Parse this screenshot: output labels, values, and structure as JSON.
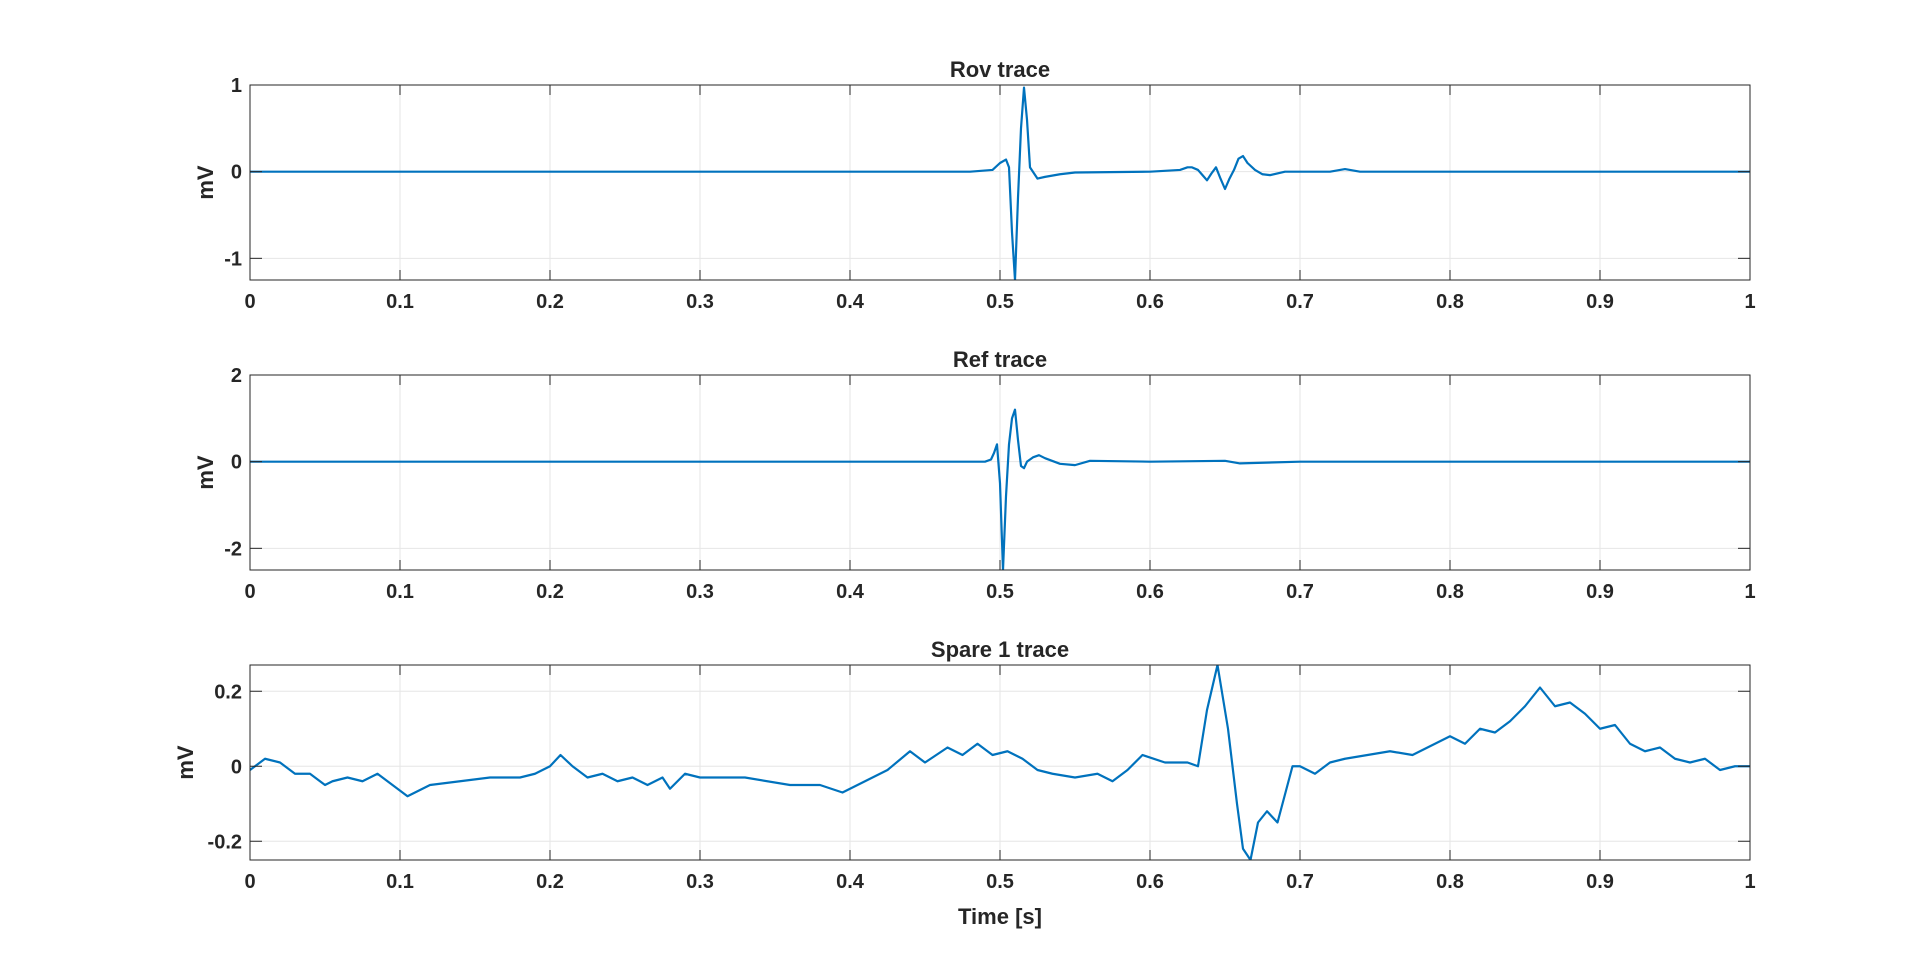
{
  "figure": {
    "xlabel": "Time [s]",
    "line_color": "#0072BD",
    "axis_color": "#262626",
    "grid_color": "#E6E6E6"
  },
  "chart_data": [
    {
      "type": "line",
      "title": "Rov trace",
      "xlabel": "",
      "ylabel": "mV",
      "xlim": [
        0,
        1
      ],
      "ylim": [
        -1.25,
        1
      ],
      "xticks": [
        0,
        0.1,
        0.2,
        0.3,
        0.4,
        0.5,
        0.6,
        0.7,
        0.8,
        0.9,
        1
      ],
      "xtick_labels": [
        "0",
        "0.1",
        "0.2",
        "0.3",
        "0.4",
        "0.5",
        "0.6",
        "0.7",
        "0.8",
        "0.9",
        "1"
      ],
      "yticks": [
        -1,
        0,
        1
      ],
      "ytick_labels": [
        "-1",
        "0",
        "1"
      ],
      "grid": true,
      "series": [
        {
          "color": "#0072BD",
          "x": [
            0,
            0.1,
            0.2,
            0.3,
            0.4,
            0.48,
            0.495,
            0.5,
            0.504,
            0.506,
            0.508,
            0.51,
            0.512,
            0.514,
            0.516,
            0.518,
            0.52,
            0.525,
            0.53,
            0.54,
            0.55,
            0.6,
            0.62,
            0.625,
            0.628,
            0.632,
            0.635,
            0.638,
            0.641,
            0.644,
            0.647,
            0.65,
            0.653,
            0.656,
            0.659,
            0.662,
            0.665,
            0.67,
            0.675,
            0.68,
            0.69,
            0.7,
            0.72,
            0.73,
            0.74,
            0.8,
            0.9,
            1
          ],
          "y": [
            0,
            0,
            0,
            0,
            0,
            0,
            0.02,
            0.1,
            0.14,
            0.05,
            -0.7,
            -1.25,
            -0.3,
            0.5,
            0.97,
            0.6,
            0.05,
            -0.08,
            -0.06,
            -0.03,
            -0.01,
            0,
            0.02,
            0.05,
            0.05,
            0.02,
            -0.04,
            -0.1,
            -0.02,
            0.05,
            -0.08,
            -0.2,
            -0.08,
            0.02,
            0.15,
            0.18,
            0.1,
            0.02,
            -0.03,
            -0.04,
            0,
            0,
            0,
            0.03,
            0,
            0,
            0,
            0
          ]
        }
      ]
    },
    {
      "type": "line",
      "title": "Ref trace",
      "xlabel": "",
      "ylabel": "mV",
      "xlim": [
        0,
        1
      ],
      "ylim": [
        -2.5,
        2
      ],
      "xticks": [
        0,
        0.1,
        0.2,
        0.3,
        0.4,
        0.5,
        0.6,
        0.7,
        0.8,
        0.9,
        1
      ],
      "xtick_labels": [
        "0",
        "0.1",
        "0.2",
        "0.3",
        "0.4",
        "0.5",
        "0.6",
        "0.7",
        "0.8",
        "0.9",
        "1"
      ],
      "yticks": [
        -2,
        0,
        2
      ],
      "ytick_labels": [
        "-2",
        "0",
        "2"
      ],
      "grid": true,
      "series": [
        {
          "color": "#0072BD",
          "x": [
            0,
            0.1,
            0.2,
            0.3,
            0.4,
            0.48,
            0.49,
            0.494,
            0.496,
            0.498,
            0.5,
            0.502,
            0.504,
            0.506,
            0.508,
            0.51,
            0.512,
            0.514,
            0.516,
            0.518,
            0.522,
            0.526,
            0.53,
            0.54,
            0.55,
            0.56,
            0.6,
            0.65,
            0.66,
            0.7,
            0.8,
            0.9,
            1
          ],
          "y": [
            0,
            0,
            0,
            0,
            0,
            0,
            0,
            0.05,
            0.2,
            0.4,
            -0.5,
            -2.5,
            -0.8,
            0.4,
            1.0,
            1.2,
            0.5,
            -0.1,
            -0.15,
            0.0,
            0.1,
            0.15,
            0.08,
            -0.05,
            -0.08,
            0.02,
            0,
            0.02,
            -0.04,
            0,
            0,
            0,
            0
          ]
        }
      ]
    },
    {
      "type": "line",
      "title": "Spare 1 trace",
      "xlabel": "Time [s]",
      "ylabel": "mV",
      "xlim": [
        0,
        1
      ],
      "ylim": [
        -0.25,
        0.27
      ],
      "xticks": [
        0,
        0.1,
        0.2,
        0.3,
        0.4,
        0.5,
        0.6,
        0.7,
        0.8,
        0.9,
        1
      ],
      "xtick_labels": [
        "0",
        "0.1",
        "0.2",
        "0.3",
        "0.4",
        "0.5",
        "0.6",
        "0.7",
        "0.8",
        "0.9",
        "1"
      ],
      "yticks": [
        -0.2,
        0,
        0.2
      ],
      "ytick_labels": [
        "-0.2",
        "0",
        "0.2"
      ],
      "grid": true,
      "series": [
        {
          "color": "#0072BD",
          "x": [
            0,
            0.01,
            0.02,
            0.03,
            0.04,
            0.05,
            0.055,
            0.065,
            0.075,
            0.085,
            0.095,
            0.105,
            0.12,
            0.14,
            0.16,
            0.18,
            0.19,
            0.2,
            0.207,
            0.215,
            0.225,
            0.235,
            0.245,
            0.255,
            0.265,
            0.275,
            0.28,
            0.29,
            0.3,
            0.33,
            0.36,
            0.38,
            0.395,
            0.41,
            0.425,
            0.44,
            0.45,
            0.465,
            0.475,
            0.485,
            0.495,
            0.505,
            0.515,
            0.525,
            0.535,
            0.55,
            0.565,
            0.575,
            0.585,
            0.595,
            0.61,
            0.625,
            0.632,
            0.638,
            0.645,
            0.652,
            0.658,
            0.662,
            0.667,
            0.672,
            0.678,
            0.685,
            0.695,
            0.7,
            0.71,
            0.72,
            0.73,
            0.745,
            0.76,
            0.775,
            0.79,
            0.8,
            0.81,
            0.82,
            0.83,
            0.84,
            0.85,
            0.86,
            0.87,
            0.88,
            0.89,
            0.9,
            0.91,
            0.92,
            0.93,
            0.94,
            0.95,
            0.96,
            0.97,
            0.98,
            0.99,
            1
          ],
          "y": [
            -0.01,
            0.02,
            0.01,
            -0.02,
            -0.02,
            -0.05,
            -0.04,
            -0.03,
            -0.04,
            -0.02,
            -0.05,
            -0.08,
            -0.05,
            -0.04,
            -0.03,
            -0.03,
            -0.02,
            0.0,
            0.03,
            0.0,
            -0.03,
            -0.02,
            -0.04,
            -0.03,
            -0.05,
            -0.03,
            -0.06,
            -0.02,
            -0.03,
            -0.03,
            -0.05,
            -0.05,
            -0.07,
            -0.04,
            -0.01,
            0.04,
            0.01,
            0.05,
            0.03,
            0.06,
            0.03,
            0.04,
            0.02,
            -0.01,
            -0.02,
            -0.03,
            -0.02,
            -0.04,
            -0.01,
            0.03,
            0.01,
            0.01,
            0.0,
            0.15,
            0.27,
            0.1,
            -0.1,
            -0.22,
            -0.25,
            -0.15,
            -0.12,
            -0.15,
            0.0,
            0.0,
            -0.02,
            0.01,
            0.02,
            0.03,
            0.04,
            0.03,
            0.06,
            0.08,
            0.06,
            0.1,
            0.09,
            0.12,
            0.16,
            0.21,
            0.16,
            0.17,
            0.14,
            0.1,
            0.11,
            0.06,
            0.04,
            0.05,
            0.02,
            0.01,
            0.02,
            -0.01,
            0.0,
            0.0
          ]
        }
      ]
    }
  ]
}
